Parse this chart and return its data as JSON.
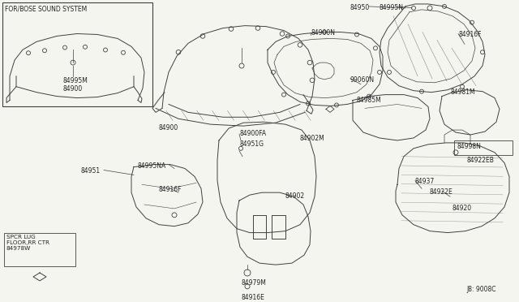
{
  "bg_color": "#f5f5f0",
  "line_color": "#404040",
  "text_color": "#222222",
  "box_color": "#000000",
  "figsize": [
    6.4,
    3.72
  ],
  "dpi": 100,
  "ref_code": "J8: 9008C",
  "labels": {
    "bose_box": "FOR/BOSE SOUND SYSTEM",
    "p84995M_box": "84995M",
    "p84900_box": "84900",
    "p84900_main": "84900",
    "p84900FA": "84900FA",
    "p84951G": "84951G",
    "p84900N": "84900N",
    "p99060N": "99060N",
    "p84950": "84950",
    "p84995N": "84995N",
    "p84916F_tr": "84916F",
    "p84985M": "84985M",
    "p84981M": "84981M",
    "p84998N": "84998N",
    "p84922EB": "84922EB",
    "p84995NA": "84995NA",
    "p84951": "84951",
    "p84916F_side": "84916F",
    "p84979M": "84979M",
    "p84916E": "84916E",
    "p84902M": "84902M",
    "p84902": "84902",
    "p84937": "84937",
    "p84922E": "84922E",
    "p84920": "84920",
    "spcr_box": "SPCR LUG\nFLOOR,RR CTR\n84978W"
  }
}
